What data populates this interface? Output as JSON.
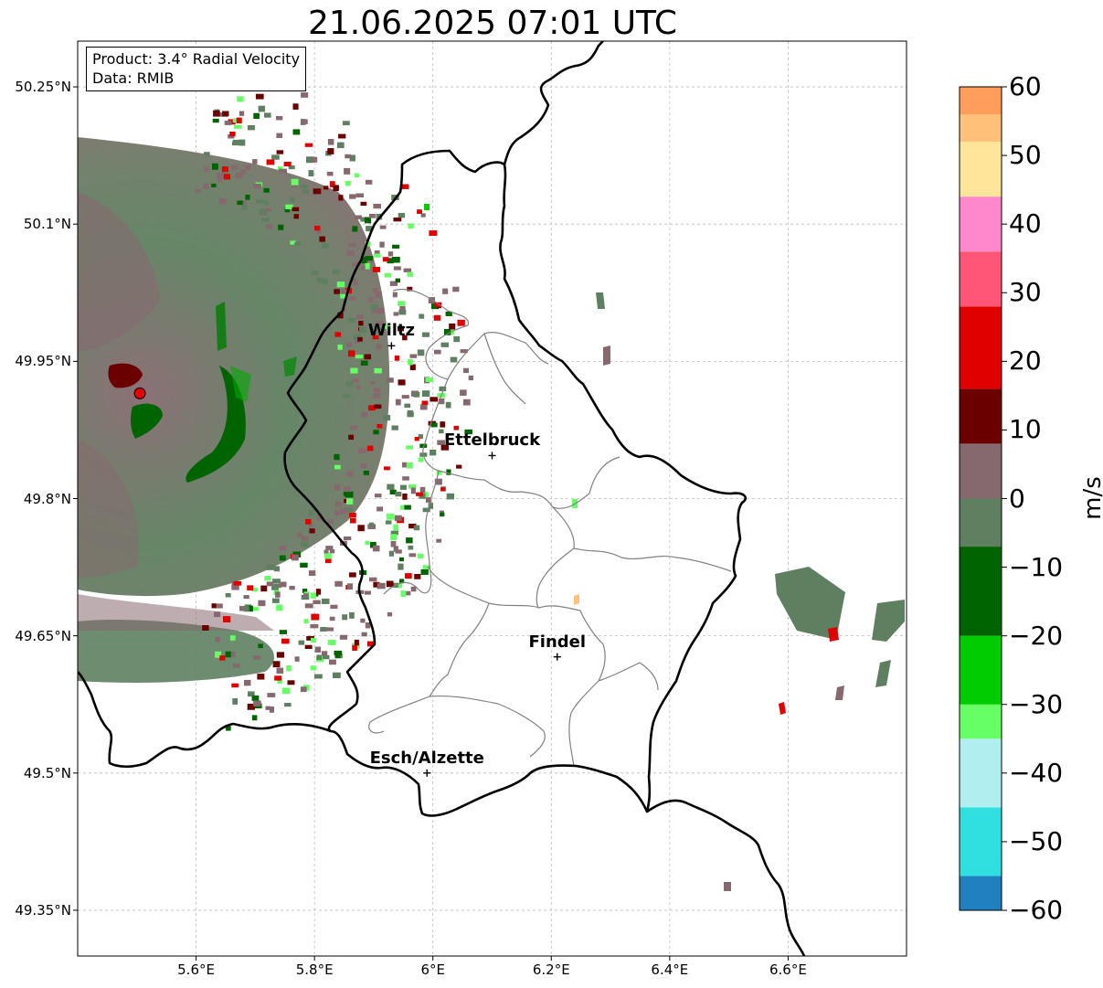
{
  "title": "21.06.2025 07:01 UTC",
  "info": {
    "product": "Product: 3.4° Radial Velocity",
    "source": "Data: RMIB"
  },
  "axes": {
    "lat_labels": [
      {
        "value": 50.25,
        "label": "50.25°N"
      },
      {
        "value": 50.1,
        "label": "50.1°N"
      },
      {
        "value": 49.95,
        "label": "49.95°N"
      },
      {
        "value": 49.8,
        "label": "49.8°N"
      },
      {
        "value": 49.65,
        "label": "49.65°N"
      },
      {
        "value": 49.5,
        "label": "49.5°N"
      },
      {
        "value": 49.35,
        "label": "49.35°N"
      }
    ],
    "lon_labels": [
      {
        "value": 5.6,
        "label": "5.6°E"
      },
      {
        "value": 5.8,
        "label": "5.8°E"
      },
      {
        "value": 6.0,
        "label": "6°E"
      },
      {
        "value": 6.2,
        "label": "6.2°E"
      },
      {
        "value": 6.4,
        "label": "6.4°E"
      },
      {
        "value": 6.6,
        "label": "6.6°E"
      }
    ],
    "lat_range": [
      49.3,
      50.3
    ],
    "lon_range": [
      5.4,
      6.8
    ]
  },
  "cities": [
    {
      "name": "Wiltz",
      "lon": 5.93,
      "lat": 49.967
    },
    {
      "name": "Ettelbruck",
      "lon": 6.1,
      "lat": 49.847
    },
    {
      "name": "Findel",
      "lon": 6.21,
      "lat": 49.627
    },
    {
      "name": "Esch/Alzette",
      "lon": 5.99,
      "lat": 49.5
    }
  ],
  "radar_site": {
    "lon": 5.505,
    "lat": 49.915,
    "color": "#e00000"
  },
  "colorbar": {
    "unit": "m/s",
    "min": -60,
    "max": 60,
    "ticks": [
      {
        "value": 60,
        "label": "60"
      },
      {
        "value": 50,
        "label": "50"
      },
      {
        "value": 40,
        "label": "40"
      },
      {
        "value": 30,
        "label": "30"
      },
      {
        "value": 20,
        "label": "20"
      },
      {
        "value": 10,
        "label": "10"
      },
      {
        "value": 0,
        "label": "0"
      },
      {
        "value": -10,
        "label": "−10"
      },
      {
        "value": -20,
        "label": "−20"
      },
      {
        "value": -30,
        "label": "−30"
      },
      {
        "value": -40,
        "label": "−40"
      },
      {
        "value": -50,
        "label": "−50"
      },
      {
        "value": -60,
        "label": "−60"
      }
    ],
    "colors": {
      "outbound_high": "#ff9e5a",
      "outbound_orange": "#ffc07a",
      "outbound_yellow": "#ffe59a",
      "outbound_pink": "#ff88cc",
      "outbound_red_light": "#ff5577",
      "outbound_red": "#e00000",
      "outbound_dark": "#6b0000",
      "near_zero_pos": "#86696f",
      "near_zero_neg": "#5e8060",
      "inbound_dark": "#006400",
      "inbound_green": "#00cc00",
      "inbound_light": "#66ff66",
      "inbound_cyan_light": "#b0eef0",
      "inbound_cyan": "#30e0e0",
      "inbound_blue": "#2080c0"
    }
  }
}
